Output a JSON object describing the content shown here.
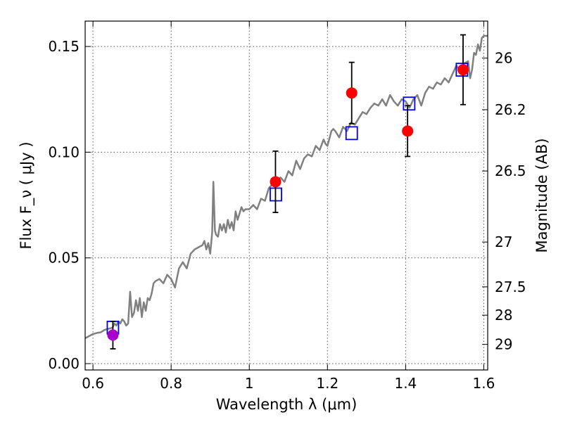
{
  "chart_data": {
    "type": "scatter",
    "xlabel": "Wavelength  λ (μm)",
    "ylabel": "Flux  F_ν  ( μJy )",
    "ylabel_right": "Magnitude (AB)",
    "xlim": [
      0.58,
      1.61
    ],
    "ylim": [
      -0.003,
      0.162
    ],
    "grid": true,
    "x_ticks": [
      {
        "value": 0.6,
        "label": "0.6"
      },
      {
        "value": 0.8,
        "label": "0.8"
      },
      {
        "value": 1.0,
        "label": "1"
      },
      {
        "value": 1.2,
        "label": "1.2"
      },
      {
        "value": 1.4,
        "label": "1.4"
      },
      {
        "value": 1.6,
        "label": "1.6"
      }
    ],
    "y_ticks": [
      {
        "value": 0.0,
        "label": "0.00"
      },
      {
        "value": 0.05,
        "label": "0.05"
      },
      {
        "value": 0.1,
        "label": "0.10"
      },
      {
        "value": 0.15,
        "label": "0.15"
      }
    ],
    "right_ticks": [
      {
        "flux": 0.1445,
        "label": "26"
      },
      {
        "flux": 0.1201,
        "label": "26.2"
      },
      {
        "flux": 0.0911,
        "label": "26.5"
      },
      {
        "flux": 0.0575,
        "label": "27"
      },
      {
        "flux": 0.0363,
        "label": "27.5"
      },
      {
        "flux": 0.0229,
        "label": "28"
      },
      {
        "flux": 0.0091,
        "label": "29"
      }
    ],
    "series": [
      {
        "kind": "model_spectrum",
        "color": "#808080",
        "points": [
          [
            0.58,
            0.012
          ],
          [
            0.59,
            0.013
          ],
          [
            0.6,
            0.014
          ],
          [
            0.61,
            0.0145
          ],
          [
            0.62,
            0.0148
          ],
          [
            0.63,
            0.016
          ],
          [
            0.64,
            0.0165
          ],
          [
            0.65,
            0.017
          ],
          [
            0.655,
            0.019
          ],
          [
            0.66,
            0.018
          ],
          [
            0.665,
            0.02
          ],
          [
            0.67,
            0.019
          ],
          [
            0.675,
            0.021
          ],
          [
            0.68,
            0.02
          ],
          [
            0.685,
            0.018
          ],
          [
            0.69,
            0.019
          ],
          [
            0.695,
            0.034
          ],
          [
            0.7,
            0.022
          ],
          [
            0.705,
            0.024
          ],
          [
            0.71,
            0.03
          ],
          [
            0.715,
            0.025
          ],
          [
            0.72,
            0.031
          ],
          [
            0.725,
            0.022
          ],
          [
            0.73,
            0.029
          ],
          [
            0.735,
            0.025
          ],
          [
            0.74,
            0.031
          ],
          [
            0.745,
            0.03
          ],
          [
            0.75,
            0.033
          ],
          [
            0.755,
            0.038
          ],
          [
            0.76,
            0.039
          ],
          [
            0.77,
            0.04
          ],
          [
            0.78,
            0.038
          ],
          [
            0.79,
            0.042
          ],
          [
            0.8,
            0.04
          ],
          [
            0.81,
            0.036
          ],
          [
            0.82,
            0.045
          ],
          [
            0.83,
            0.048
          ],
          [
            0.84,
            0.045
          ],
          [
            0.85,
            0.052
          ],
          [
            0.86,
            0.054
          ],
          [
            0.87,
            0.055
          ],
          [
            0.88,
            0.056
          ],
          [
            0.885,
            0.058
          ],
          [
            0.89,
            0.054
          ],
          [
            0.895,
            0.057
          ],
          [
            0.9,
            0.052
          ],
          [
            0.905,
            0.062
          ],
          [
            0.908,
            0.086
          ],
          [
            0.912,
            0.063
          ],
          [
            0.915,
            0.061
          ],
          [
            0.92,
            0.06
          ],
          [
            0.925,
            0.066
          ],
          [
            0.93,
            0.063
          ],
          [
            0.935,
            0.066
          ],
          [
            0.94,
            0.062
          ],
          [
            0.945,
            0.068
          ],
          [
            0.95,
            0.064
          ],
          [
            0.955,
            0.067
          ],
          [
            0.96,
            0.063
          ],
          [
            0.965,
            0.072
          ],
          [
            0.97,
            0.068
          ],
          [
            0.975,
            0.071
          ],
          [
            0.98,
            0.074
          ],
          [
            0.985,
            0.072
          ],
          [
            0.99,
            0.073
          ],
          [
            1.0,
            0.073
          ],
          [
            1.01,
            0.075
          ],
          [
            1.02,
            0.073
          ],
          [
            1.03,
            0.078
          ],
          [
            1.04,
            0.077
          ],
          [
            1.05,
            0.083
          ],
          [
            1.06,
            0.085
          ],
          [
            1.07,
            0.086
          ],
          [
            1.08,
            0.088
          ],
          [
            1.09,
            0.086
          ],
          [
            1.1,
            0.091
          ],
          [
            1.11,
            0.089
          ],
          [
            1.12,
            0.096
          ],
          [
            1.13,
            0.092
          ],
          [
            1.14,
            0.097
          ],
          [
            1.15,
            0.099
          ],
          [
            1.16,
            0.098
          ],
          [
            1.17,
            0.103
          ],
          [
            1.18,
            0.101
          ],
          [
            1.19,
            0.106
          ],
          [
            1.195,
            0.104
          ],
          [
            1.2,
            0.103
          ],
          [
            1.21,
            0.11
          ],
          [
            1.215,
            0.111
          ],
          [
            1.22,
            0.11
          ],
          [
            1.23,
            0.107
          ],
          [
            1.24,
            0.112
          ],
          [
            1.25,
            0.11
          ],
          [
            1.26,
            0.114
          ],
          [
            1.27,
            0.113
          ],
          [
            1.28,
            0.116
          ],
          [
            1.29,
            0.119
          ],
          [
            1.3,
            0.118
          ],
          [
            1.31,
            0.121
          ],
          [
            1.32,
            0.123
          ],
          [
            1.33,
            0.122
          ],
          [
            1.34,
            0.125
          ],
          [
            1.35,
            0.122
          ],
          [
            1.36,
            0.127
          ],
          [
            1.37,
            0.124
          ],
          [
            1.38,
            0.122
          ],
          [
            1.39,
            0.125
          ],
          [
            1.4,
            0.124
          ],
          [
            1.41,
            0.121
          ],
          [
            1.42,
            0.125
          ],
          [
            1.43,
            0.127
          ],
          [
            1.44,
            0.122
          ],
          [
            1.45,
            0.128
          ],
          [
            1.46,
            0.131
          ],
          [
            1.47,
            0.13
          ],
          [
            1.48,
            0.133
          ],
          [
            1.49,
            0.132
          ],
          [
            1.5,
            0.135
          ],
          [
            1.51,
            0.133
          ],
          [
            1.52,
            0.137
          ],
          [
            1.53,
            0.141
          ],
          [
            1.54,
            0.138
          ],
          [
            1.55,
            0.142
          ],
          [
            1.56,
            0.143
          ],
          [
            1.565,
            0.135
          ],
          [
            1.57,
            0.139
          ],
          [
            1.575,
            0.147
          ],
          [
            1.58,
            0.146
          ],
          [
            1.585,
            0.151
          ],
          [
            1.59,
            0.148
          ],
          [
            1.595,
            0.154
          ],
          [
            1.6,
            0.155
          ],
          [
            1.61,
            0.155
          ]
        ]
      },
      {
        "kind": "model_photometry",
        "marker": "open-square",
        "color": "#0000ee",
        "points": [
          [
            0.651,
            0.017
          ],
          [
            1.068,
            0.08
          ],
          [
            1.262,
            0.109
          ],
          [
            1.409,
            0.123
          ],
          [
            1.544,
            0.139
          ]
        ]
      },
      {
        "kind": "observed_photometry",
        "marker": "filled-circle",
        "color": "#ff0000",
        "points": [
          {
            "x": 1.067,
            "y": 0.086,
            "err": 0.0145
          },
          {
            "x": 1.262,
            "y": 0.128,
            "err": 0.0145
          },
          {
            "x": 1.405,
            "y": 0.11,
            "err": 0.012
          },
          {
            "x": 1.547,
            "y": 0.139,
            "err": 0.0165
          }
        ]
      },
      {
        "kind": "observed_photometry_blue",
        "marker": "filled-circle",
        "color": "#aa00cc",
        "points": [
          {
            "x": 0.651,
            "y": 0.0135,
            "err": 0.0065
          }
        ]
      }
    ]
  }
}
